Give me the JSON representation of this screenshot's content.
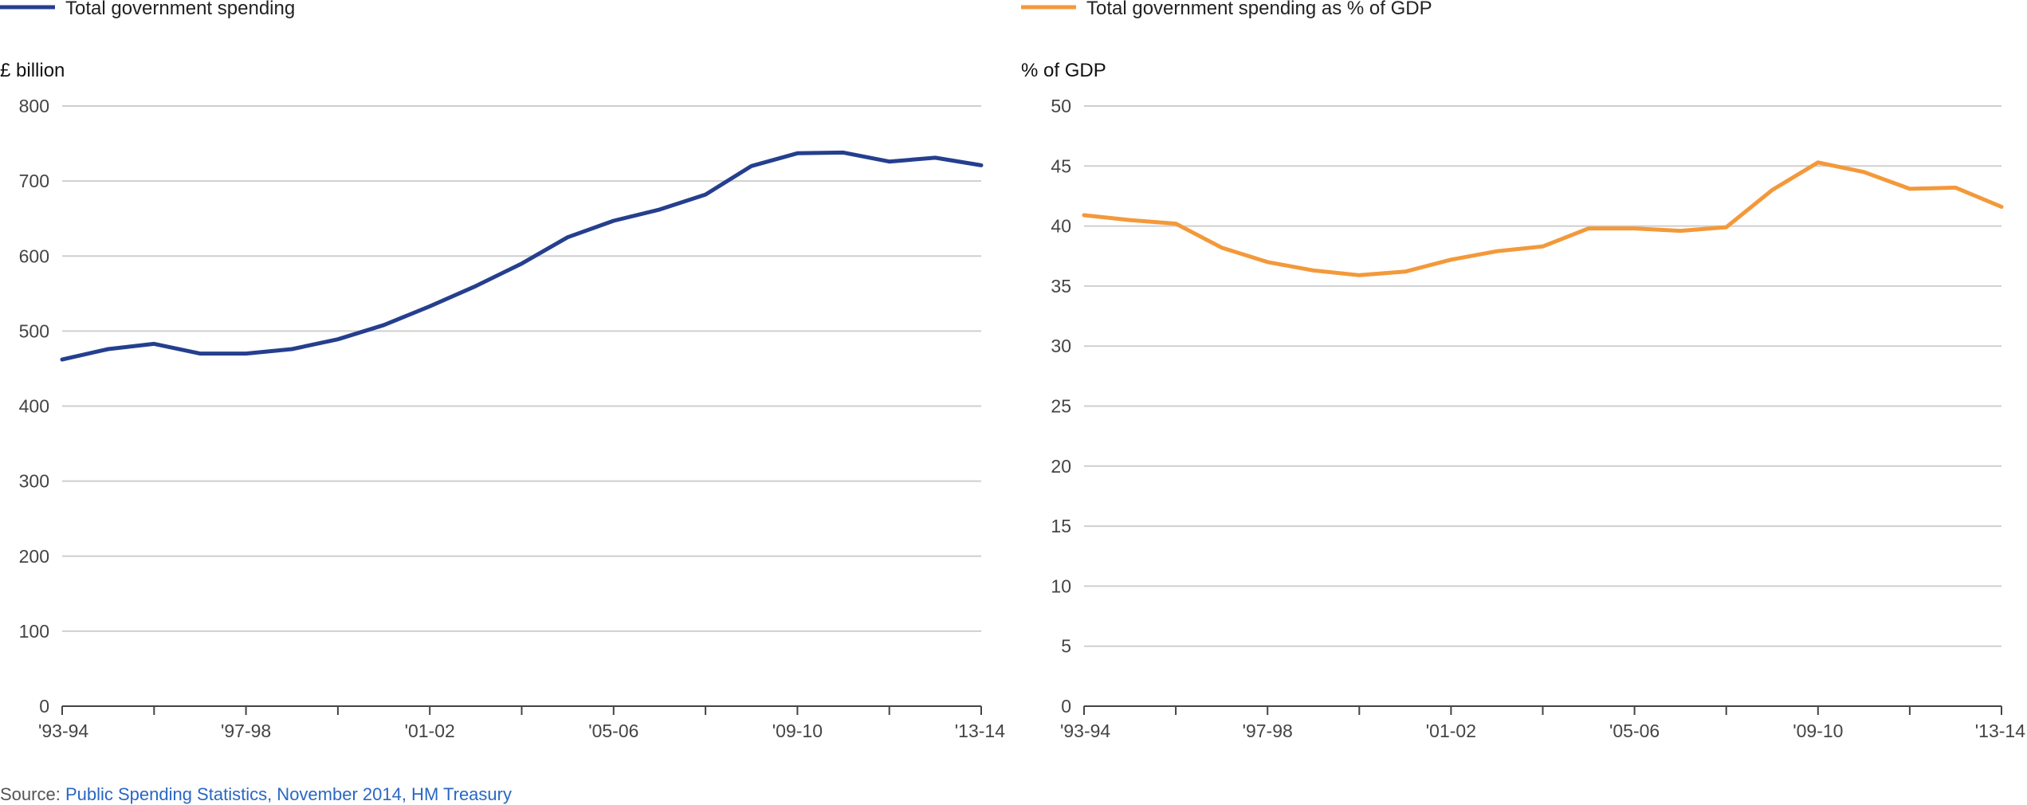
{
  "chart_data": [
    {
      "type": "line",
      "legend": "Total government spending",
      "ylabel": "£ billion",
      "ylim": [
        0,
        800
      ],
      "yticks": [
        0,
        100,
        200,
        300,
        400,
        500,
        600,
        700,
        800
      ],
      "grid": true,
      "x": [
        "1993-94",
        "1994-95",
        "1995-96",
        "1996-97",
        "1997-98",
        "1998-99",
        "1999-00",
        "2000-01",
        "2001-02",
        "2002-03",
        "2003-04",
        "2004-05",
        "2005-06",
        "2006-07",
        "2007-08",
        "2008-09",
        "2009-10",
        "2010-11",
        "2011-12",
        "2012-13",
        "2013-14"
      ],
      "xtick_labels": {
        "0": "'93-94",
        "4": "'97-98",
        "8": "'01-02",
        "12": "'05-06",
        "16": "'09-10",
        "20": "'13-14"
      },
      "values": [
        462,
        476,
        483,
        470,
        470,
        476,
        489,
        508,
        533,
        560,
        590,
        625,
        647,
        662,
        682,
        720,
        737,
        738,
        726,
        731,
        721
      ],
      "color": "#253f8e"
    },
    {
      "type": "line",
      "legend": "Total government spending as % of GDP",
      "ylabel": "% of GDP",
      "ylim": [
        0,
        50
      ],
      "yticks": [
        0,
        5,
        10,
        15,
        20,
        25,
        30,
        35,
        40,
        45,
        50
      ],
      "grid": true,
      "x": [
        "1993-94",
        "1994-95",
        "1995-96",
        "1996-97",
        "1997-98",
        "1998-99",
        "1999-00",
        "2000-01",
        "2001-02",
        "2002-03",
        "2003-04",
        "2004-05",
        "2005-06",
        "2006-07",
        "2007-08",
        "2008-09",
        "2009-10",
        "2010-11",
        "2011-12",
        "2012-13",
        "2013-14"
      ],
      "xtick_labels": {
        "0": "'93-94",
        "4": "'97-98",
        "8": "'01-02",
        "12": "'05-06",
        "16": "'09-10",
        "20": "'13-14"
      },
      "values": [
        40.9,
        40.5,
        40.2,
        38.2,
        37.0,
        36.3,
        35.9,
        36.2,
        37.2,
        37.9,
        38.3,
        39.8,
        39.8,
        39.6,
        39.9,
        43.0,
        45.3,
        44.5,
        43.1,
        43.2,
        41.6
      ],
      "color": "#f3993a"
    }
  ],
  "source": {
    "prefix": "Source: ",
    "link_text": "Public Spending Statistics, November 2014, HM Treasury",
    "link_color": "#2a67c2"
  }
}
